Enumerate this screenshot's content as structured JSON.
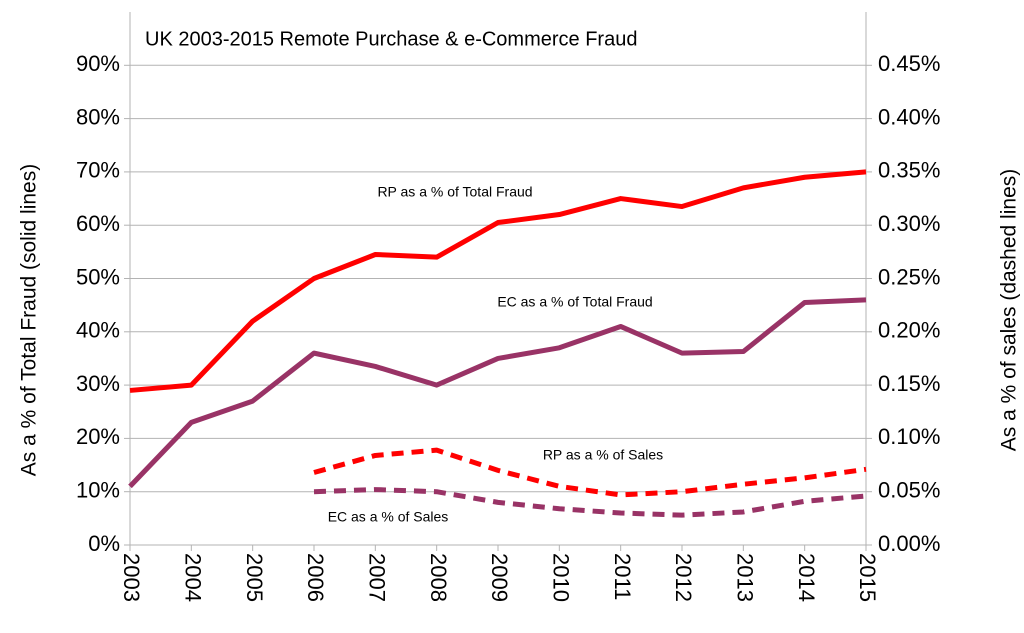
{
  "chart_data": {
    "type": "line",
    "title": "UK 2003-2015  Remote Purchase & e-Commerce Fraud",
    "y_label": "As a % of Total Fraud (solid lines)",
    "y2_label": "As a % of sales (dashed lines)",
    "categories": [
      "2003",
      "2004",
      "2005",
      "2006",
      "2007",
      "2008",
      "2009",
      "2010",
      "2011",
      "2012",
      "2013",
      "2014",
      "2015"
    ],
    "series": [
      {
        "name": "RP as a % of Total Fraud",
        "color": "#ff0000",
        "dashed": false,
        "axis": "y",
        "values": [
          29,
          30,
          42,
          50,
          54.5,
          54,
          60.5,
          62,
          65,
          63.5,
          67,
          69,
          70
        ]
      },
      {
        "name": "EC as a % of Total Fraud",
        "color": "#993366",
        "dashed": false,
        "axis": "y",
        "values": [
          11,
          23,
          27,
          36,
          33.5,
          30,
          35,
          37,
          41,
          36,
          36.3,
          45.5,
          46
        ]
      },
      {
        "name": "RP as a % of Sales",
        "color": "#ff0000",
        "dashed": true,
        "axis": "y2",
        "values": [
          null,
          null,
          null,
          0.068,
          0.084,
          0.089,
          0.07,
          0.055,
          0.047,
          0.05,
          0.057,
          0.063,
          0.071
        ]
      },
      {
        "name": "EC as a % of Sales",
        "color": "#993366",
        "dashed": true,
        "axis": "y2",
        "values": [
          null,
          null,
          null,
          0.05,
          0.052,
          0.05,
          0.04,
          0.034,
          0.03,
          0.028,
          0.031,
          0.041,
          0.046
        ]
      }
    ],
    "ylim": [
      0,
      100
    ],
    "yticks": [
      {
        "value": 0,
        "label": "0%"
      },
      {
        "value": 10,
        "label": "10%"
      },
      {
        "value": 20,
        "label": "20%"
      },
      {
        "value": 30,
        "label": "30%"
      },
      {
        "value": 40,
        "label": "40%"
      },
      {
        "value": 50,
        "label": "50%"
      },
      {
        "value": 60,
        "label": "60%"
      },
      {
        "value": 70,
        "label": "70%"
      },
      {
        "value": 80,
        "label": "80%"
      },
      {
        "value": 90,
        "label": "90%"
      }
    ],
    "y2lim": [
      0,
      0.5
    ],
    "y2ticks": [
      {
        "value": 0,
        "label": "0.00%"
      },
      {
        "value": 0.05,
        "label": "0.05%"
      },
      {
        "value": 0.1,
        "label": "0.10%"
      },
      {
        "value": 0.15,
        "label": "0.15%"
      },
      {
        "value": 0.2,
        "label": "0.20%"
      },
      {
        "value": 0.25,
        "label": "0.25%"
      },
      {
        "value": 0.3,
        "label": "0.30%"
      },
      {
        "value": 0.35,
        "label": "0.35%"
      },
      {
        "value": 0.4,
        "label": "0.40%"
      },
      {
        "value": 0.45,
        "label": "0.45%"
      }
    ],
    "grid": true
  }
}
